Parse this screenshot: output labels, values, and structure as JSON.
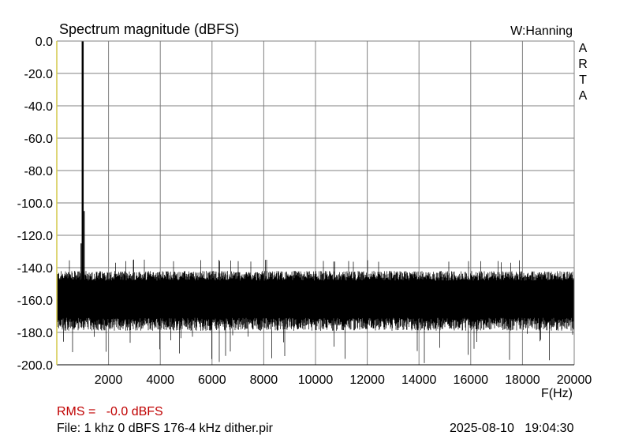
{
  "chart_data": {
    "type": "line",
    "title": "Spectrum magnitude (dBFS)",
    "window_label": "W:Hanning",
    "brand_letters": [
      "A",
      "R",
      "T",
      "A"
    ],
    "xlabel": "F(Hz)",
    "ylabel": "",
    "xlim": [
      0,
      20000
    ],
    "ylim": [
      -200,
      0
    ],
    "x_ticks": [
      2000,
      4000,
      6000,
      8000,
      10000,
      12000,
      14000,
      16000,
      18000,
      20000
    ],
    "y_ticks": [
      "0.0",
      "-20.0",
      "-40.0",
      "-60.0",
      "-80.0",
      "-100.0",
      "-120.0",
      "-140.0",
      "-160.0",
      "-180.0",
      "-200.0"
    ],
    "grid": true,
    "series": [
      {
        "color": "#000000",
        "peak": {
          "x": 1000,
          "y": 0
        },
        "noise_floor": {
          "top_y": -145,
          "bottom_y": -175,
          "spike_max_y": -135,
          "dip_min_y": -200
        }
      }
    ]
  },
  "footer": {
    "rms_label": "RMS =",
    "rms_value": "-0.0 dBFS",
    "file": "File: 1 khz 0 dBFS 176-4 kHz dither.pir",
    "date": "2025-08-10",
    "time": "19:04:30"
  },
  "colors": {
    "grid": "#808080",
    "left_axis_line": "#d4c84a",
    "rms_text": "#c00000"
  }
}
